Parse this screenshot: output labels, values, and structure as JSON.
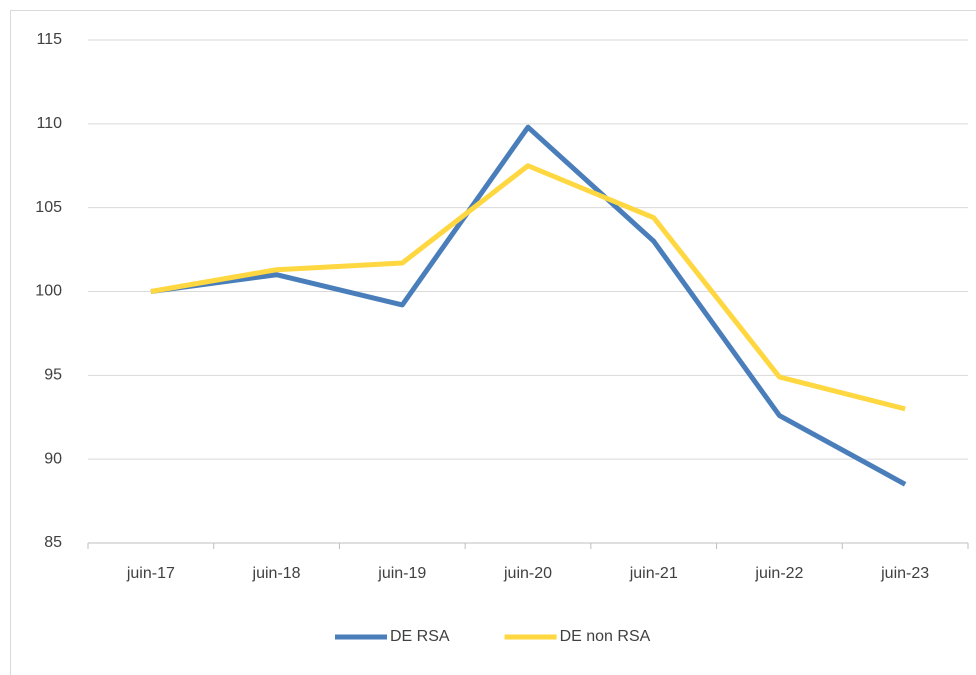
{
  "chart_data": {
    "type": "line",
    "categories": [
      "juin-17",
      "juin-18",
      "juin-19",
      "juin-20",
      "juin-21",
      "juin-22",
      "juin-23"
    ],
    "series": [
      {
        "name": "DE RSA",
        "color": "#4a7ebb",
        "values": [
          100,
          101.0,
          99.2,
          109.8,
          103.0,
          92.6,
          88.5
        ]
      },
      {
        "name": "DE non RSA",
        "color": "#ffd740",
        "values": [
          100,
          101.3,
          101.7,
          107.5,
          104.4,
          94.9,
          93.0
        ]
      }
    ],
    "ylim": [
      85,
      115
    ],
    "yticks": [
      85,
      90,
      95,
      100,
      105,
      110,
      115
    ],
    "grid": true,
    "legend": "bottom"
  }
}
